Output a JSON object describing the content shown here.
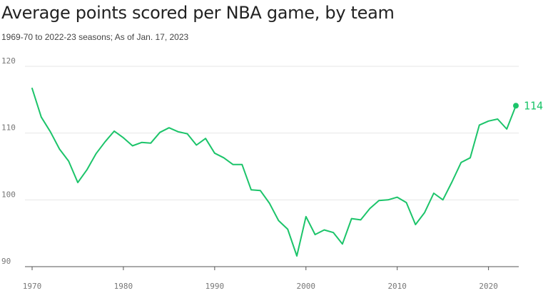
{
  "colors": {
    "series": "#1cc46a",
    "grid": "#e6e6e6",
    "axis": "#555555",
    "text": "#222222"
  },
  "header": {
    "title": "Average points scored per NBA game, by team",
    "subtitle": "1969-70 to 2022-23 seasons; As of Jan. 17, 2023"
  },
  "chart_data": {
    "type": "line",
    "title": "Average points scored per NBA game, by team",
    "subtitle": "1969-70 to 2022-23 seasons; As of Jan. 17, 2023",
    "xlabel": "",
    "ylabel": "",
    "xlim": [
      1970,
      2023
    ],
    "ylim": [
      90,
      120
    ],
    "x_ticks": [
      1970,
      1980,
      1990,
      2000,
      2010,
      2020
    ],
    "y_ticks": [
      90,
      100,
      110,
      120
    ],
    "grid": "horizontal",
    "end_label": "114",
    "series": [
      {
        "x": [
          1970,
          1971,
          1972,
          1973,
          1974,
          1975,
          1976,
          1977,
          1978,
          1979,
          1980,
          1981,
          1982,
          1983,
          1984,
          1985,
          1986,
          1987,
          1988,
          1989,
          1990,
          1991,
          1992,
          1993,
          1994,
          1995,
          1996,
          1997,
          1998,
          1999,
          2000,
          2001,
          2002,
          2003,
          2004,
          2005,
          2006,
          2007,
          2008,
          2009,
          2010,
          2011,
          2012,
          2013,
          2014,
          2015,
          2016,
          2017,
          2018,
          2019,
          2020,
          2021,
          2022,
          2023
        ],
        "values": [
          116.7,
          112.4,
          110.2,
          107.6,
          105.8,
          102.6,
          104.5,
          106.9,
          108.7,
          110.3,
          109.3,
          108.1,
          108.6,
          108.5,
          110.1,
          110.8,
          110.2,
          109.9,
          108.2,
          109.2,
          107.0,
          106.3,
          105.3,
          105.3,
          101.5,
          101.4,
          99.5,
          96.9,
          95.6,
          91.6,
          97.5,
          94.8,
          95.5,
          95.1,
          93.4,
          97.2,
          97.0,
          98.7,
          99.9,
          100.0,
          100.4,
          99.6,
          96.3,
          98.1,
          101.0,
          100.0,
          102.7,
          105.6,
          106.3,
          111.2,
          111.8,
          112.1,
          110.6,
          114.1
        ]
      }
    ]
  }
}
